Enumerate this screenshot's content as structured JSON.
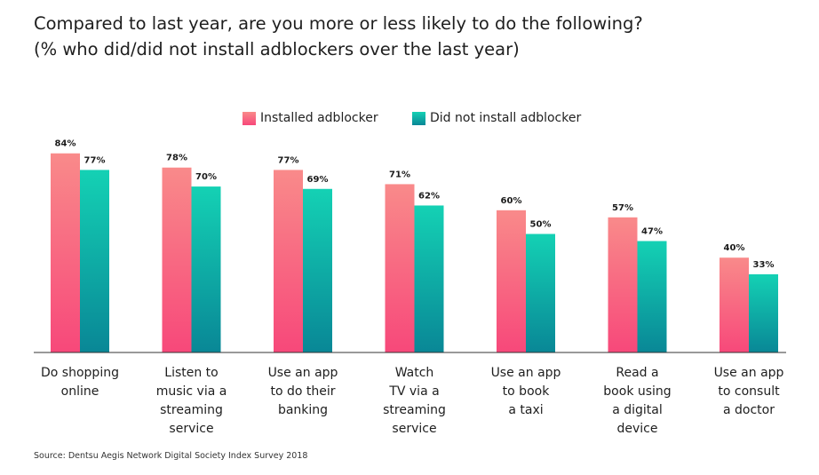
{
  "title_line1": "Compared to last year, are you more or less likely to do the following?",
  "title_line2": "(% who did/did not install adblockers over the last year)",
  "source": "Source: Dentsu Aegis Network Digital Society Index Survey 2018",
  "colors": {
    "installed_top": "#f98a8a",
    "installed_bottom": "#f7487a",
    "not_installed_top": "#14d1b4",
    "not_installed_bottom": "#098796"
  },
  "chart_data": {
    "type": "bar",
    "title": "Compared to last year, are you more or less likely to do the following?",
    "subtitle": "(% who did/did not install adblockers over the last year)",
    "legend_position": "top-center",
    "categories": [
      [
        "Do shopping",
        "online"
      ],
      [
        "Listen to",
        "music via a",
        "streaming",
        "service"
      ],
      [
        "Use an app",
        "to do their",
        "banking"
      ],
      [
        "Watch",
        "TV via a",
        "streaming",
        "service"
      ],
      [
        "Use an app",
        "to book",
        "a taxi"
      ],
      [
        "Read a",
        "book using",
        "a digital",
        "device"
      ],
      [
        "Use an app",
        "to consult",
        "a doctor"
      ]
    ],
    "series": [
      {
        "name": "Installed adblocker",
        "values": [
          84,
          78,
          77,
          71,
          60,
          57,
          40
        ],
        "labels": [
          "84%",
          "78%",
          "77%",
          "71%",
          "60%",
          "57%",
          "40%"
        ]
      },
      {
        "name": "Did not install adblocker",
        "values": [
          77,
          70,
          69,
          62,
          50,
          47,
          33
        ],
        "labels": [
          "77%",
          "70%",
          "69%",
          "62%",
          "50%",
          "47%",
          "33%"
        ]
      }
    ],
    "ylim": [
      0,
      100
    ],
    "grid": false
  }
}
